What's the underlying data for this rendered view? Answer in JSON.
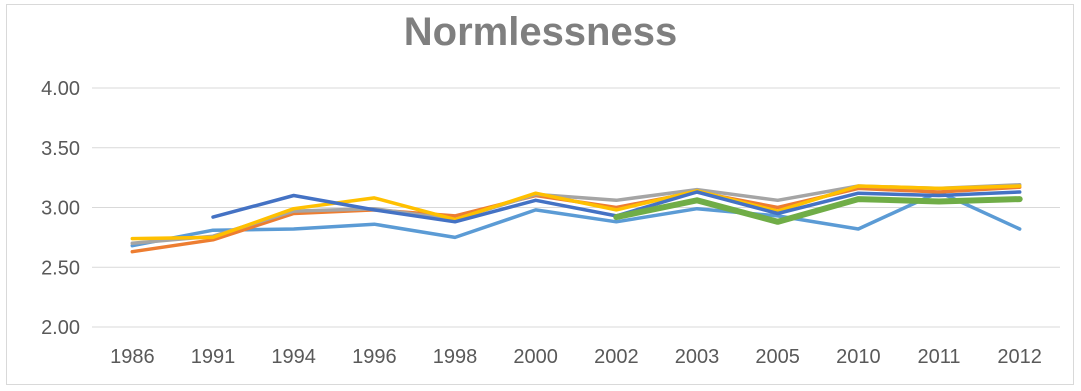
{
  "chart_data": {
    "type": "line",
    "title": "Normlessness",
    "xlabel": "",
    "ylabel": "",
    "categories": [
      "1986",
      "1991",
      "1994",
      "1996",
      "1998",
      "2000",
      "2002",
      "2003",
      "2005",
      "2010",
      "2011",
      "2012"
    ],
    "ylim": [
      2.0,
      4.0
    ],
    "yticks": [
      "2.00",
      "2.50",
      "3.00",
      "3.50",
      "4.00"
    ],
    "grid": true,
    "legend": "none",
    "series": [
      {
        "color": "#5b9bd5",
        "values": [
          2.68,
          2.81,
          2.82,
          2.86,
          2.75,
          2.98,
          2.88,
          2.99,
          2.93,
          2.82,
          3.13,
          2.82
        ]
      },
      {
        "color": "#ed7d31",
        "values": [
          2.63,
          2.73,
          2.95,
          2.98,
          2.93,
          3.1,
          3.0,
          3.13,
          3.0,
          3.16,
          3.13,
          3.17
        ]
      },
      {
        "color": "#a5a5a5",
        "values": [
          2.7,
          2.76,
          2.97,
          2.99,
          2.9,
          3.11,
          3.06,
          3.15,
          3.06,
          3.18,
          3.16,
          3.19
        ]
      },
      {
        "color": "#ffc000",
        "values": [
          2.74,
          2.75,
          2.99,
          3.08,
          2.9,
          3.12,
          2.98,
          3.14,
          2.97,
          3.18,
          3.16,
          3.18
        ]
      },
      {
        "color": "#4472c4",
        "values": [
          null,
          2.92,
          3.1,
          2.98,
          2.88,
          3.06,
          2.93,
          3.13,
          2.95,
          3.12,
          3.1,
          3.13
        ]
      },
      {
        "color": "#70ad47",
        "values": [
          null,
          null,
          null,
          null,
          null,
          null,
          2.92,
          3.06,
          2.88,
          3.07,
          3.05,
          3.07
        ]
      }
    ]
  }
}
